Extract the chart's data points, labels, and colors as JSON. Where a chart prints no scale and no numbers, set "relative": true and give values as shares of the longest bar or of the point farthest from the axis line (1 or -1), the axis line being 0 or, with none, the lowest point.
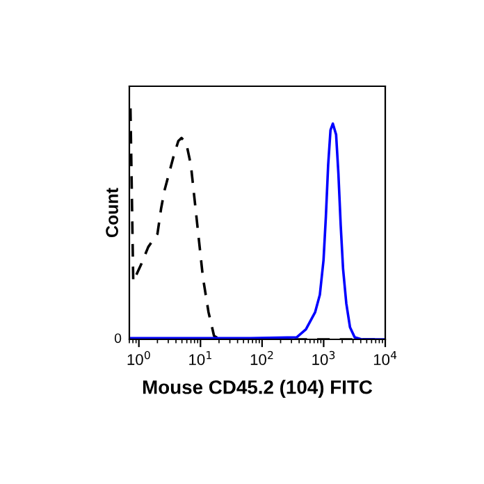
{
  "chart_data": {
    "type": "line",
    "relative": true,
    "xlabel": "Mouse CD45.2 (104) FITC",
    "ylabel": "Count",
    "log": "x",
    "xlim": [
      0.7,
      10000
    ],
    "xticks": [
      {
        "value": 1,
        "label": "10$^{0}$"
      },
      {
        "value": 10,
        "label": "10$^{1}$"
      },
      {
        "value": 100,
        "label": "10$^{2}$"
      },
      {
        "value": 1000,
        "label": "10$^{3}$"
      },
      {
        "value": 10000,
        "label": "10$^{4}$"
      }
    ],
    "annotations": [
      "0"
    ],
    "grid": false,
    "legend": false,
    "marker": "none",
    "series": [
      {
        "color": "#000000",
        "line_style": "dashed",
        "x": [
          0.73,
          0.81,
          1.09,
          1.42,
          1.68,
          2.0,
          2.3,
          2.6,
          3.09,
          3.67,
          4.37,
          4.93,
          5.87,
          6.98,
          8.02,
          9.21,
          10.96,
          13.5,
          16.6,
          20.8,
          9820
        ],
        "values": [
          1.0,
          0.25,
          0.325,
          0.4,
          0.428,
          0.456,
          0.568,
          0.644,
          0.719,
          0.794,
          0.859,
          0.872,
          0.85,
          0.756,
          0.606,
          0.456,
          0.268,
          0.118,
          0.015,
          0,
          0
        ]
      },
      {
        "color": "#0000ff",
        "line_style": "solid",
        "x": [
          0.71,
          2.0,
          11.3,
          64,
          364,
          515,
          728,
          867,
          995,
          1086,
          1184,
          1291,
          1409,
          1592,
          1734,
          1892,
          2065,
          2330,
          2675,
          3184,
          4130,
          9820
        ],
        "values": [
          0.005,
          0.005,
          0.005,
          0.005,
          0.009,
          0.043,
          0.118,
          0.193,
          0.343,
          0.531,
          0.756,
          0.906,
          0.934,
          0.887,
          0.719,
          0.493,
          0.306,
          0.156,
          0.053,
          0.009,
          0,
          0
        ]
      }
    ]
  }
}
